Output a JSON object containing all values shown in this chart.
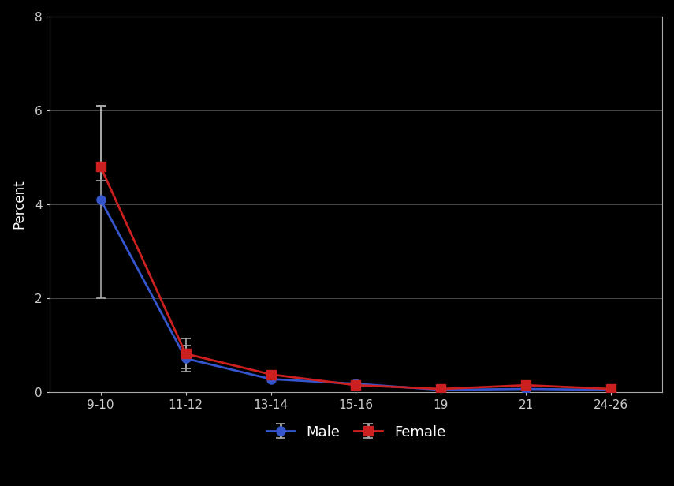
{
  "x_labels": [
    "9-10",
    "11-12",
    "13-14",
    "15-16",
    "19",
    "21",
    "24-26"
  ],
  "x_positions": [
    1,
    2,
    3,
    4,
    5,
    6,
    7
  ],
  "male_y": [
    4.1,
    0.72,
    0.28,
    0.18,
    0.05,
    0.07,
    0.05
  ],
  "female_y": [
    4.8,
    0.82,
    0.38,
    0.15,
    0.07,
    0.15,
    0.07
  ],
  "male_yerr_lower": [
    2.1,
    0.28,
    0.0,
    0.0,
    0.0,
    0.0,
    0.0
  ],
  "male_yerr_upper": [
    2.0,
    0.28,
    0.0,
    0.0,
    0.0,
    0.0,
    0.0
  ],
  "female_yerr_lower": [
    0.3,
    0.32,
    0.0,
    0.0,
    0.0,
    0.0,
    0.0
  ],
  "female_yerr_upper": [
    1.3,
    0.32,
    0.0,
    0.0,
    0.0,
    0.0,
    0.0
  ],
  "male_color": "#3555cc",
  "female_color": "#cc2020",
  "ylabel": "Percent",
  "ylim": [
    0,
    8
  ],
  "yticks": [
    0,
    2,
    4,
    6,
    8
  ],
  "xlim": [
    0.4,
    7.6
  ],
  "legend_male": "Male",
  "legend_female": "Female",
  "background_color": "#000000",
  "plot_bg_color": "#000000",
  "grid_color": "#666666",
  "axis_color": "#aaaaaa",
  "text_color": "#ffffff",
  "tick_color": "#cccccc"
}
